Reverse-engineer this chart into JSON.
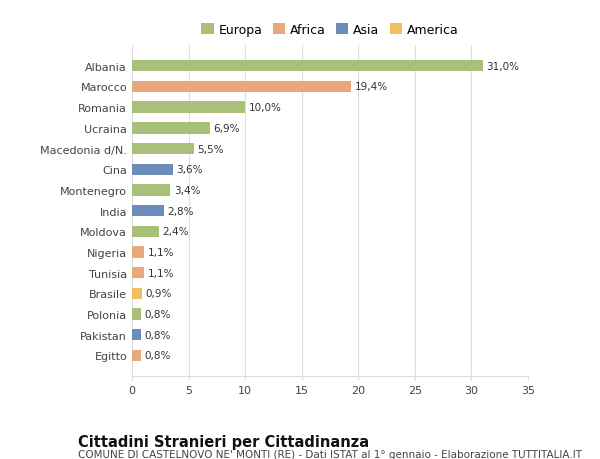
{
  "categories": [
    "Albania",
    "Marocco",
    "Romania",
    "Ucraina",
    "Macedonia d/N.",
    "Cina",
    "Montenegro",
    "India",
    "Moldova",
    "Nigeria",
    "Tunisia",
    "Brasile",
    "Polonia",
    "Pakistan",
    "Egitto"
  ],
  "values": [
    31.0,
    19.4,
    10.0,
    6.9,
    5.5,
    3.6,
    3.4,
    2.8,
    2.4,
    1.1,
    1.1,
    0.9,
    0.8,
    0.8,
    0.8
  ],
  "labels": [
    "31,0%",
    "19,4%",
    "10,0%",
    "6,9%",
    "5,5%",
    "3,6%",
    "3,4%",
    "2,8%",
    "2,4%",
    "1,1%",
    "1,1%",
    "0,9%",
    "0,8%",
    "0,8%",
    "0,8%"
  ],
  "continents": [
    "Europa",
    "Africa",
    "Europa",
    "Europa",
    "Europa",
    "Asia",
    "Europa",
    "Asia",
    "Europa",
    "Africa",
    "Africa",
    "America",
    "Europa",
    "Asia",
    "Africa"
  ],
  "continent_colors": {
    "Europa": "#a8c07a",
    "Africa": "#e8a87c",
    "Asia": "#6b8cba",
    "America": "#f0c060"
  },
  "legend_order": [
    "Europa",
    "Africa",
    "Asia",
    "America"
  ],
  "title": "Cittadini Stranieri per Cittadinanza",
  "subtitle": "COMUNE DI CASTELNOVO NE' MONTI (RE) - Dati ISTAT al 1° gennaio - Elaborazione TUTTITALIA.IT",
  "xlim": [
    0,
    35
  ],
  "xticks": [
    0,
    5,
    10,
    15,
    20,
    25,
    30,
    35
  ],
  "background_color": "#ffffff",
  "grid_color": "#dddddd",
  "bar_height": 0.55,
  "title_fontsize": 10.5,
  "subtitle_fontsize": 7.5,
  "label_fontsize": 7.5,
  "tick_fontsize": 8,
  "legend_fontsize": 9
}
